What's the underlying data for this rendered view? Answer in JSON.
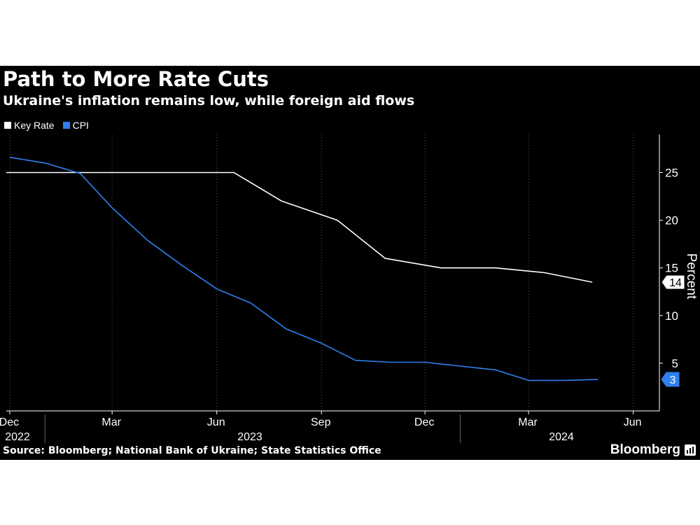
{
  "header": {
    "title": "Path to More Rate Cuts",
    "subtitle": "Ukraine's inflation remains low, while foreign aid flows"
  },
  "footer": {
    "source": "Source: Bloomberg; National Bank of Ukraine; State Statistics Office",
    "brand": "Bloomberg"
  },
  "colors": {
    "background": "#000000",
    "key_rate": "#ffffff",
    "cpi": "#2f80ed",
    "grid": "#555555",
    "text": "#ffffff"
  },
  "chart_data": {
    "type": "line",
    "title": "Path to More Rate Cuts",
    "subtitle": "Ukraine's inflation remains low, while foreign aid flows",
    "ylabel": "Percent",
    "xlabel": "",
    "ylim": [
      0,
      29
    ],
    "yticks": [
      5,
      10,
      15,
      20,
      25
    ],
    "xlim": [
      "2022-11-28",
      "2024-06-24"
    ],
    "x_tick_labels": [
      {
        "date": "2022-12-01",
        "month": "Dec",
        "year": "2022"
      },
      {
        "date": "2023-03-01",
        "month": "Mar",
        "year": ""
      },
      {
        "date": "2023-06-01",
        "month": "Jun",
        "year": "2023"
      },
      {
        "date": "2023-09-01",
        "month": "Sep",
        "year": ""
      },
      {
        "date": "2023-12-01",
        "month": "Dec",
        "year": ""
      },
      {
        "date": "2024-03-01",
        "month": "Mar",
        "year": "2024"
      },
      {
        "date": "2024-06-01",
        "month": "Jun",
        "year": ""
      }
    ],
    "year_dividers": [
      "2023-01-01",
      "2024-01-01"
    ],
    "grid": "vertical dotted lines at each month",
    "legend_position": "top-left",
    "series": [
      {
        "name": "Key Rate",
        "color": "#ffffff",
        "end_label": "14",
        "points": [
          [
            "2022-11-28",
            25
          ],
          [
            "2023-01-26",
            25
          ],
          [
            "2023-03-16",
            25
          ],
          [
            "2023-04-27",
            25
          ],
          [
            "2023-06-05",
            25
          ],
          [
            "2023-06-16",
            25
          ],
          [
            "2023-07-28",
            22
          ],
          [
            "2023-09-15",
            20
          ],
          [
            "2023-10-27",
            16
          ],
          [
            "2023-12-15",
            15
          ],
          [
            "2024-02-01",
            15
          ],
          [
            "2024-03-15",
            14.5
          ],
          [
            "2024-04-26",
            13.5
          ]
        ]
      },
      {
        "name": "CPI",
        "color": "#2f80ed",
        "end_label": "3",
        "points": [
          [
            "2022-12-01",
            26.6
          ],
          [
            "2023-01-01",
            26
          ],
          [
            "2023-02-01",
            24.9
          ],
          [
            "2023-03-01",
            21.3
          ],
          [
            "2023-04-01",
            17.9
          ],
          [
            "2023-05-01",
            15.3
          ],
          [
            "2023-06-01",
            12.8
          ],
          [
            "2023-07-01",
            11.3
          ],
          [
            "2023-08-01",
            8.6
          ],
          [
            "2023-09-01",
            7.1
          ],
          [
            "2023-10-01",
            5.3
          ],
          [
            "2023-11-01",
            5.1
          ],
          [
            "2023-12-01",
            5.1
          ],
          [
            "2024-01-01",
            4.7
          ],
          [
            "2024-02-01",
            4.3
          ],
          [
            "2024-03-01",
            3.2
          ],
          [
            "2024-04-01",
            3.2
          ],
          [
            "2024-05-01",
            3.3
          ]
        ]
      }
    ]
  }
}
